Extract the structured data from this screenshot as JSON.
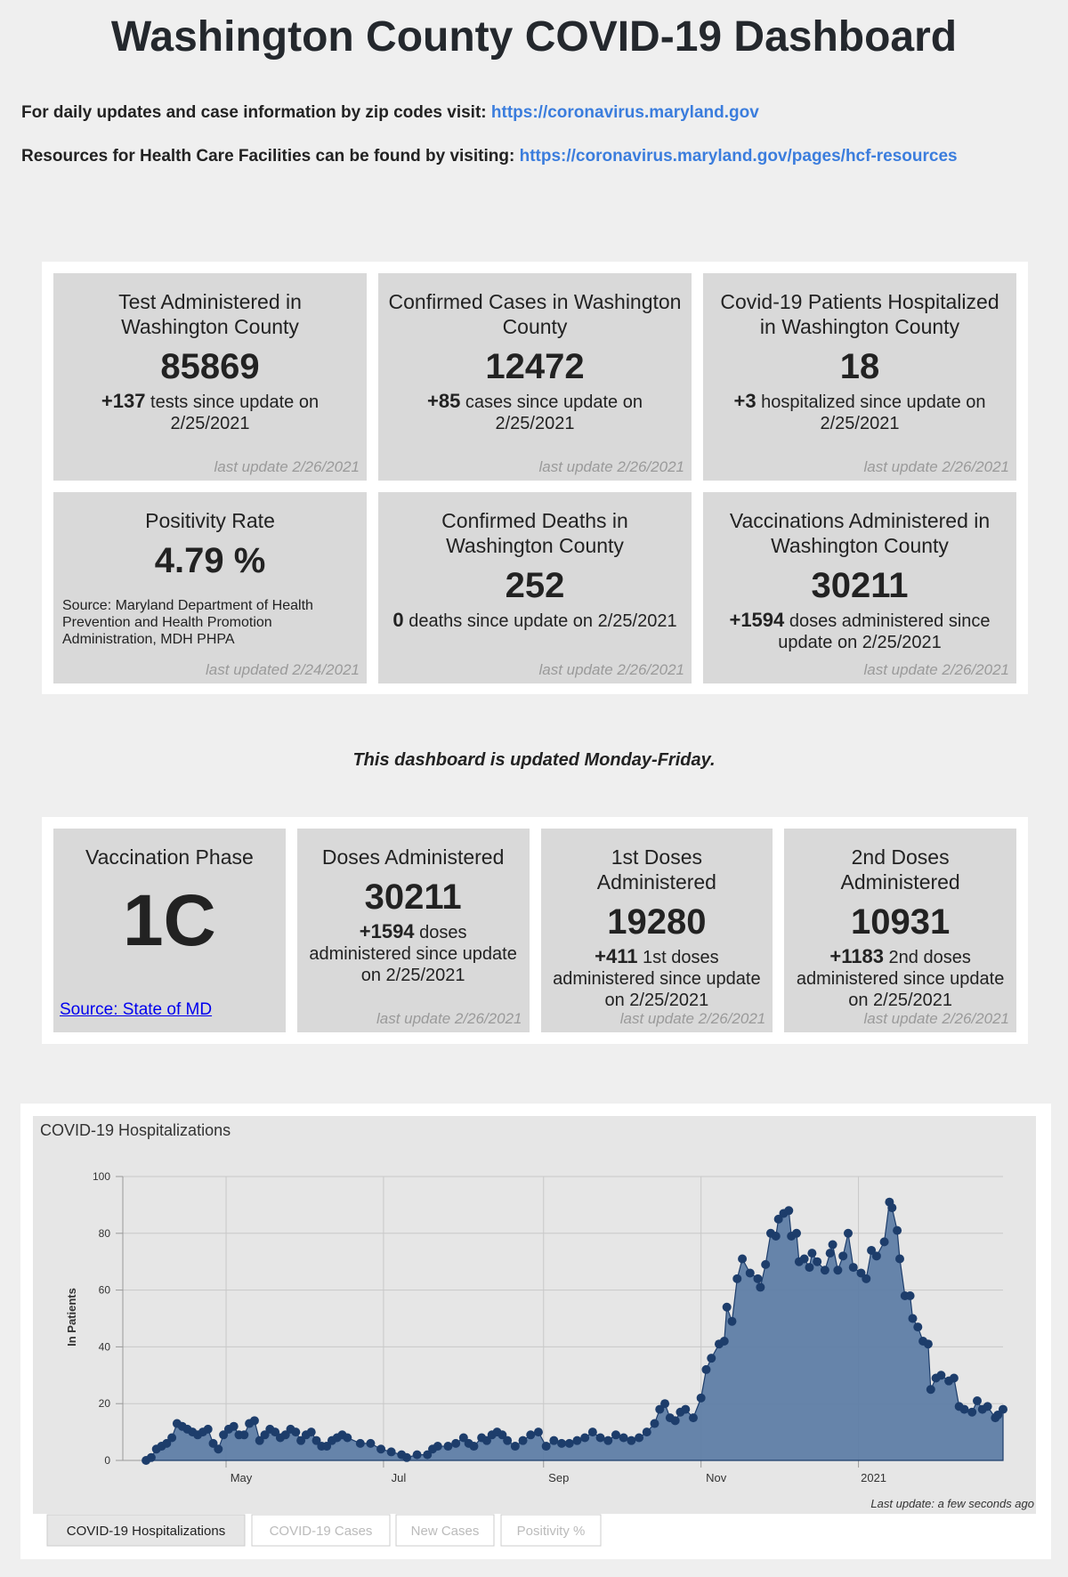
{
  "header": {
    "title": "Washington County COVID-19 Dashboard",
    "lines": [
      {
        "text": "For daily updates and case information by zip codes visit:",
        "link": "https://coronavirus.maryland.gov"
      },
      {
        "text": "Resources for Health Care Facilities can be found by visiting:",
        "link": "https://coronavirus.maryland.gov/pages/hcf-resources"
      }
    ]
  },
  "cards": [
    {
      "title": "Test Administered in Washington County",
      "value": "85869",
      "change": "+137",
      "change_text": "tests since update on 2/25/2021",
      "updated": "last update 2/26/2021"
    },
    {
      "title": "Confirmed Cases in Washington County",
      "value": "12472",
      "change": "+85",
      "change_text": "cases since update on 2/25/2021",
      "updated": "last update 2/26/2021"
    },
    {
      "title": "Covid-19 Patients Hospitalized in Washington County",
      "value": "18",
      "change": "+3",
      "change_text": "hospitalized since update on 2/25/2021",
      "updated": "last update 2/26/2021"
    },
    {
      "title": "Positivity Rate",
      "value": "4.79 %",
      "source": "Source: Maryland Department of Health Prevention and Health Promotion Administration, MDH PHPA",
      "updated": "last updated 2/24/2021"
    },
    {
      "title": "Confirmed Deaths in Washington County",
      "value": "252",
      "change": "0",
      "change_text": "deaths since update on 2/25/2021",
      "updated": "last update 2/26/2021"
    },
    {
      "title": "Vaccinations Administered in Washington County",
      "value": "30211",
      "change": "+1594",
      "change_text": "doses administered since update on 2/25/2021",
      "updated": "last update 2/26/2021"
    }
  ],
  "notice": "This dashboard is updated Monday-Friday.",
  "vaccine_cards": [
    {
      "title": "Vaccination Phase",
      "value": "1C",
      "link": "Source: State of MD"
    },
    {
      "title": "Doses Administered",
      "value": "30211",
      "change": "+1594",
      "change_text": "doses administered since update on 2/25/2021",
      "updated": "last update 2/26/2021"
    },
    {
      "title": "1st Doses Administered",
      "value": "19280",
      "change": "+411",
      "change_text": "1st doses administered since update on 2/25/2021",
      "updated": "last update 2/26/2021"
    },
    {
      "title": "2nd Doses Administered",
      "value": "10931",
      "change": "+1183",
      "change_text": "2nd doses administered since update on 2/25/2021",
      "updated": "last update 2/26/2021"
    }
  ],
  "chart_data": {
    "type": "area",
    "title": "COVID-19 Hospitalizations",
    "ylabel": "In Patients",
    "x": [
      -1,
      1,
      3,
      5,
      7,
      9,
      11,
      13,
      15,
      17,
      19,
      21,
      23,
      25,
      27,
      29,
      31,
      33,
      35,
      37,
      39,
      41,
      43,
      45,
      47,
      49,
      51,
      53,
      55,
      57,
      59,
      61,
      63,
      65,
      67,
      69,
      71,
      73,
      75,
      77,
      82,
      86,
      90,
      94,
      98,
      100,
      104,
      108,
      110,
      112,
      116,
      119,
      122,
      124,
      126,
      129,
      131,
      133,
      135,
      137,
      139,
      142,
      145,
      148,
      151,
      154,
      157,
      160,
      163,
      166,
      169,
      172,
      175,
      178,
      181,
      184,
      187,
      190,
      193,
      196,
      198,
      200,
      202,
      204,
      206,
      208,
      211,
      214,
      216,
      218,
      221,
      223,
      224,
      226,
      228,
      230,
      233,
      236,
      237,
      239,
      241,
      243,
      244,
      246,
      248,
      249,
      251,
      252,
      254,
      256,
      257,
      259,
      262,
      264,
      265,
      267,
      269,
      271,
      273,
      276,
      278,
      280,
      282,
      285,
      287,
      288,
      290,
      291,
      293,
      295,
      296,
      298,
      300,
      302,
      303,
      305,
      307,
      310,
      312,
      314,
      316,
      319,
      321,
      323,
      325,
      328,
      329,
      331
    ],
    "values": [
      0,
      1,
      4,
      5,
      6,
      8,
      13,
      12,
      11,
      10,
      9,
      10,
      11,
      6,
      4,
      9,
      11,
      12,
      9,
      9,
      13,
      14,
      7,
      9,
      11,
      10,
      8,
      9,
      11,
      10,
      7,
      9,
      10,
      7,
      5,
      5,
      7,
      8,
      9,
      8,
      6,
      6,
      4,
      3,
      2,
      1,
      2,
      2,
      4,
      5,
      5,
      6,
      8,
      6,
      5,
      8,
      7,
      9,
      10,
      9,
      7,
      5,
      7,
      9,
      10,
      5,
      7,
      6,
      6,
      7,
      8,
      10,
      8,
      7,
      9,
      8,
      7,
      8,
      10,
      13,
      18,
      20,
      15,
      14,
      17,
      18,
      15,
      22,
      32,
      36,
      41,
      42,
      54,
      49,
      64,
      71,
      66,
      64,
      61,
      69,
      80,
      79,
      85,
      87,
      88,
      79,
      80,
      70,
      71,
      68,
      73,
      70,
      67,
      73,
      76,
      67,
      72,
      80,
      68,
      66,
      64,
      74,
      72,
      77,
      91,
      89,
      81,
      71,
      58,
      58,
      50,
      47,
      42,
      41,
      25,
      29,
      30,
      28,
      29,
      19,
      18,
      17,
      21,
      18,
      19,
      15,
      16,
      18
    ],
    "xlim": [
      -10,
      331
    ],
    "ylim": [
      0,
      100
    ],
    "yticks": [
      0,
      20,
      40,
      60,
      80,
      100
    ],
    "xticks": [
      {
        "value": 30,
        "label": "May"
      },
      {
        "value": 91,
        "label": "Jul"
      },
      {
        "value": 153,
        "label": "Sep"
      },
      {
        "value": 214,
        "label": "Nov"
      },
      {
        "value": 275,
        "label": "2021"
      }
    ],
    "grid": true,
    "color": "#5f7ea6",
    "marker_color": "#1d3d6b",
    "note": "Last update: a few seconds ago"
  },
  "tabs": [
    "COVID-19 Hospitalizations",
    "COVID-19 Cases",
    "New Cases",
    "Positivity %"
  ]
}
